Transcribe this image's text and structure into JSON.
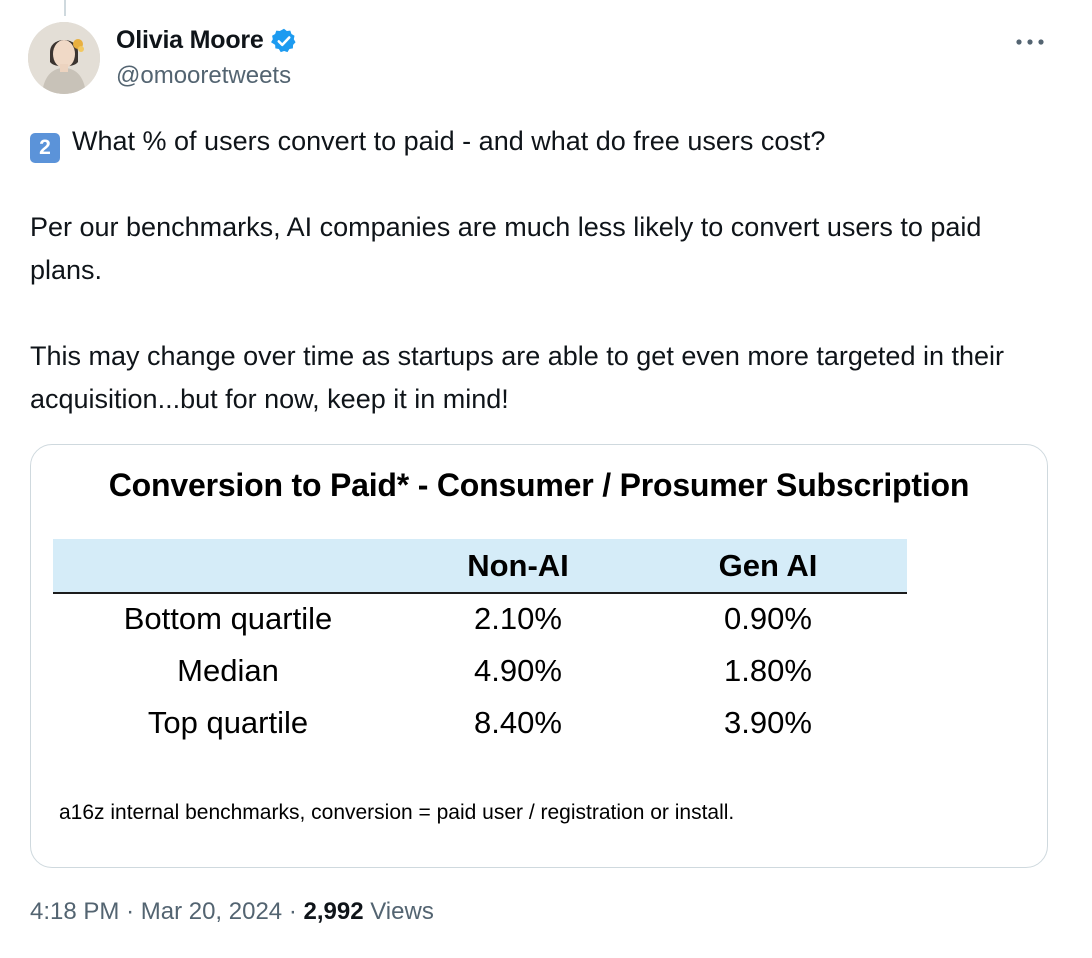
{
  "author": {
    "name": "Olivia Moore",
    "handle": "@omooretweets"
  },
  "tweet": {
    "number_emoji": "2",
    "lines": [
      "What % of users convert to paid - and what do free users cost?",
      "Per our benchmarks, AI companies are much less likely to convert users to paid plans.",
      "This may change over time as startups are able to get even more targeted in their acquisition...but for now, keep it in mind!"
    ]
  },
  "media": {
    "title": "Conversion to Paid* - Consumer / Prosumer Subscription",
    "columns": [
      "",
      "Non-AI",
      "Gen AI"
    ],
    "rows": [
      [
        "Bottom quartile",
        "2.10%",
        "0.90%"
      ],
      [
        "Median",
        "4.90%",
        "1.80%"
      ],
      [
        "Top quartile",
        "8.40%",
        "3.90%"
      ]
    ],
    "footnote": "a16z internal benchmarks, conversion = paid user / registration or install.",
    "header_color": "#d5ecf8"
  },
  "meta": {
    "time": "4:18 PM",
    "date": "Mar 20, 2024",
    "views_count": "2,992",
    "views_label": "Views"
  },
  "icons": {
    "verified": "verified-badge-icon",
    "more": "more-dots-icon"
  },
  "colors": {
    "verified_blue": "#1d9bf0",
    "secondary_text": "#536471",
    "keycap_blue": "#5b93d9"
  }
}
